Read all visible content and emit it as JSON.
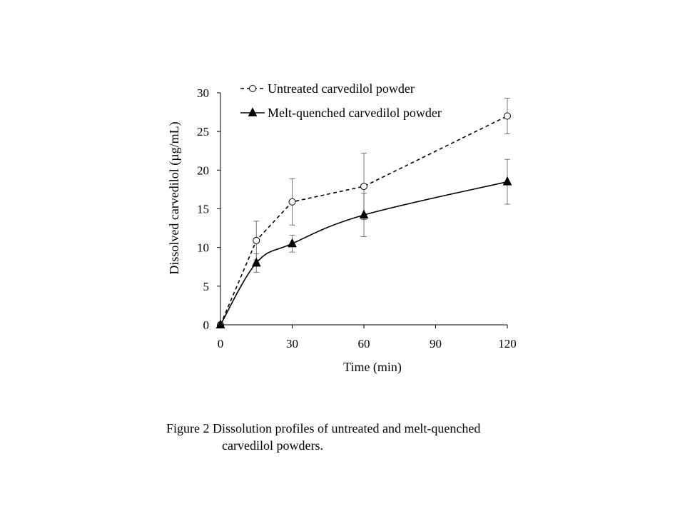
{
  "chart_data": {
    "type": "line",
    "title": "",
    "xlabel": "Time (min)",
    "ylabel": "Dissolved carvedilol (µg/mL)",
    "xlim": [
      0,
      120
    ],
    "ylim": [
      0,
      30
    ],
    "xticks": [
      0,
      30,
      60,
      90,
      120
    ],
    "yticks": [
      0,
      5,
      10,
      15,
      20,
      25,
      30
    ],
    "grid": false,
    "legend_position": "top-left",
    "series": [
      {
        "name": "Untreated carvedilol powder",
        "style": "dashed",
        "marker": "open-circle",
        "color": "#000000",
        "x": [
          0,
          15,
          30,
          60,
          120
        ],
        "y": [
          0,
          10.9,
          15.9,
          17.9,
          27.0
        ],
        "error": [
          0,
          2.5,
          3.0,
          4.3,
          2.3
        ]
      },
      {
        "name": "Melt-quenched carvedilol powder",
        "style": "solid-smooth",
        "marker": "filled-triangle",
        "color": "#000000",
        "x": [
          0,
          15,
          30,
          60,
          120
        ],
        "y": [
          0,
          8.0,
          10.5,
          14.2,
          18.5
        ],
        "error": [
          0,
          1.2,
          1.1,
          2.8,
          2.9
        ]
      }
    ]
  },
  "caption": {
    "line1": "Figure 2 Dissolution profiles of untreated and melt-quenched",
    "line2": "carvedilol powders."
  }
}
